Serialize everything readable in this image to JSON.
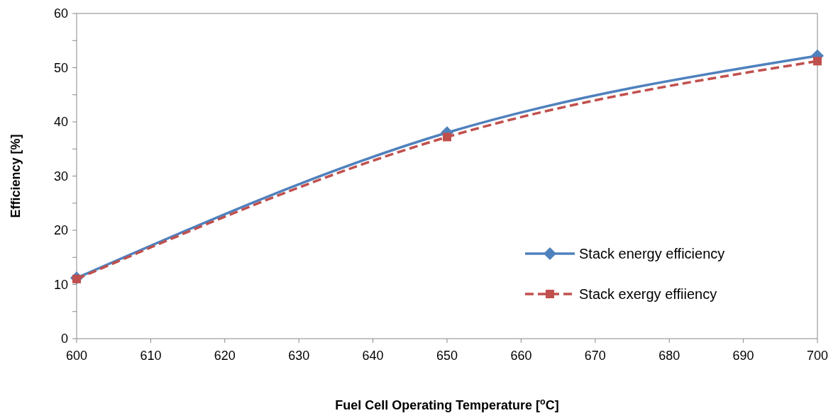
{
  "chart_data": {
    "type": "line",
    "xlabel": "Fuel Cell Operating Temperature [$^{o}$C]",
    "ylabel": "Efficiency [%]",
    "x": [
      600,
      650,
      700
    ],
    "series": [
      {
        "name": "Stack energy efficiency",
        "color": "#4f81bd",
        "values": [
          11.2,
          38,
          52.2
        ],
        "marker": "diamond",
        "line_style": "solid"
      },
      {
        "name": "Stack exergy effiiency",
        "color": "#c0504d",
        "values": [
          11,
          37.2,
          51.2
        ],
        "marker": "square",
        "line_style": "dashed"
      }
    ],
    "xlim": [
      600,
      700
    ],
    "xticks": [
      600,
      610,
      620,
      630,
      640,
      650,
      660,
      670,
      680,
      690,
      700
    ],
    "ylim": [
      0,
      60
    ],
    "yticks": [
      0,
      {
        "value": 5,
        "label": null
      },
      10,
      {
        "value": 15,
        "label": null
      },
      20,
      {
        "value": 25,
        "label": null
      },
      30,
      {
        "value": 35,
        "label": null
      },
      40,
      {
        "value": 45,
        "label": null
      },
      50,
      {
        "value": 55,
        "label": null
      },
      60
    ],
    "grid": false,
    "legend": "right"
  }
}
